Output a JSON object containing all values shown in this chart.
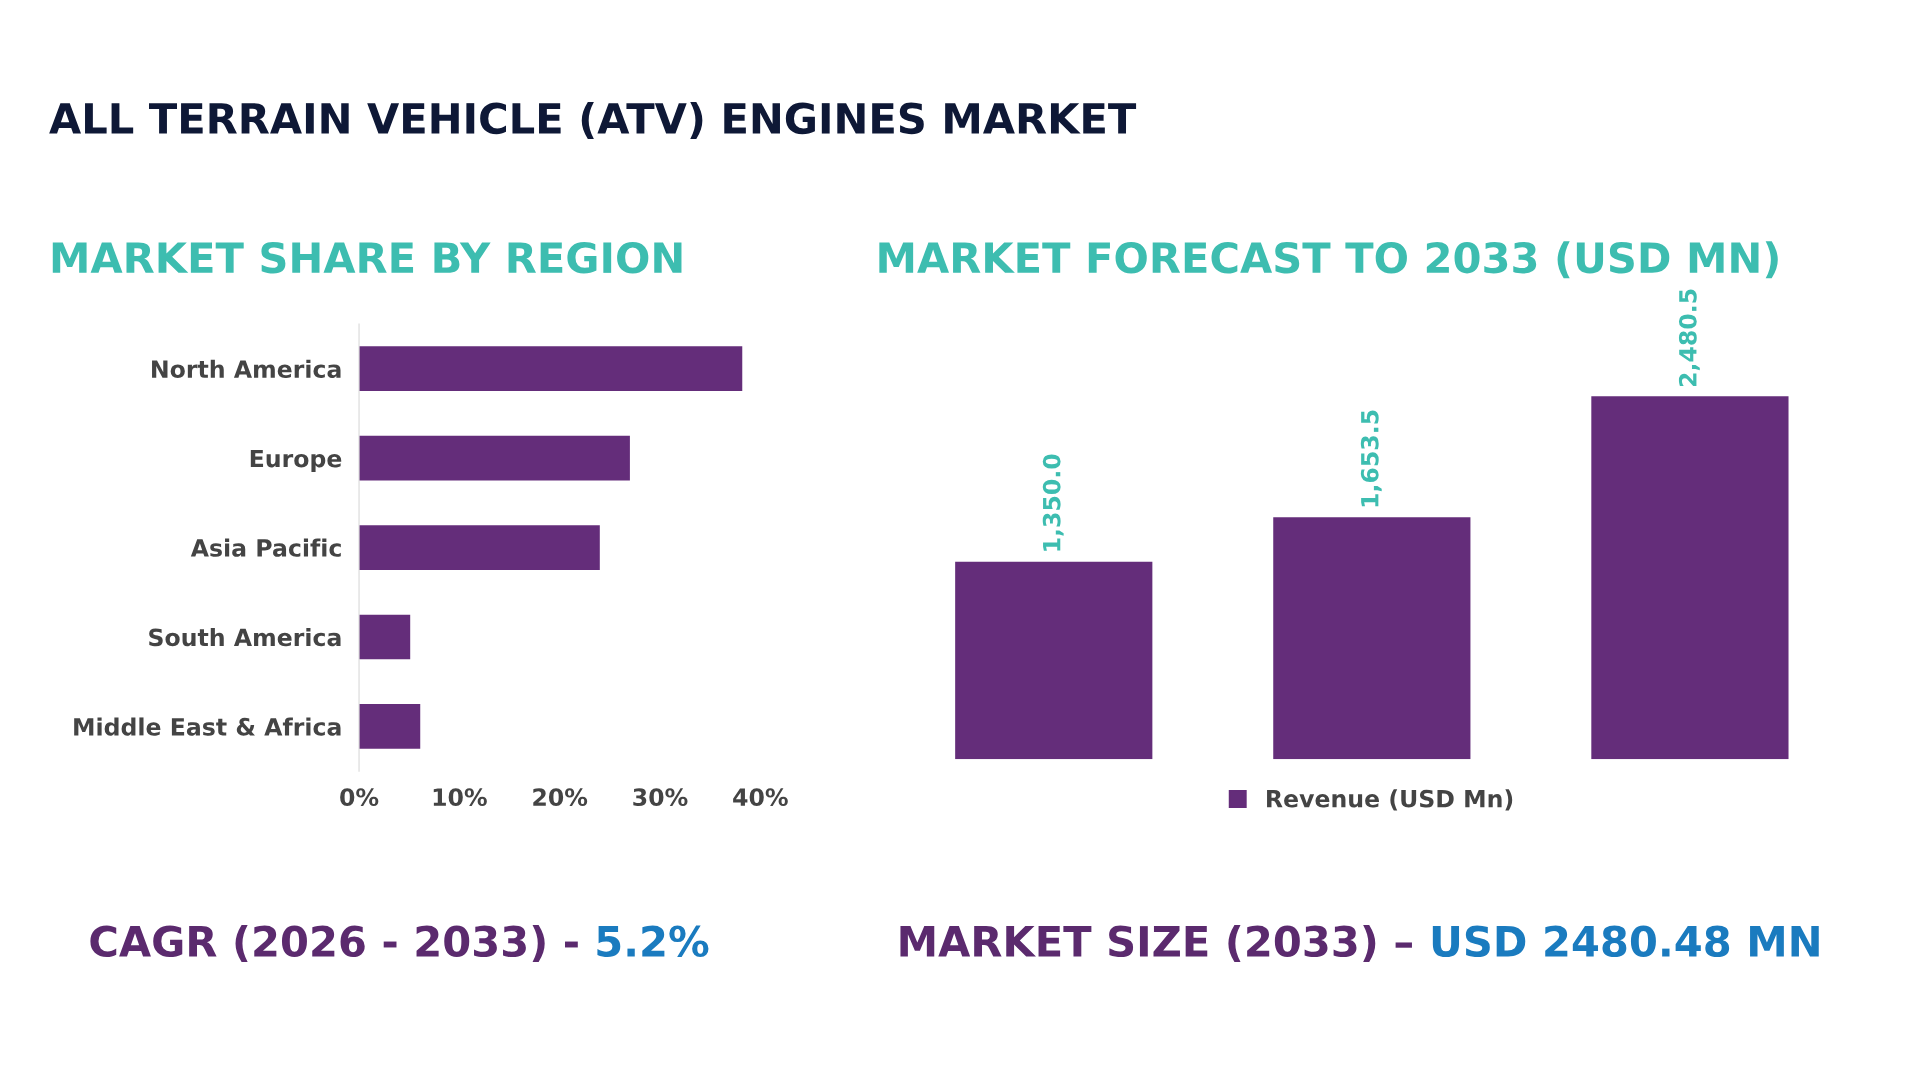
{
  "chart_data": [
    {
      "type": "other",
      "title": "ALL TERRAIN VEHICLE (ATV) ENGINES MARKET",
      "annotations": [
        "CAGR (2026 - 2033) - ",
        "5.2%",
        "MARKET SIZE (2033) – ",
        "USD 2480.48 MN"
      ]
    },
    {
      "type": "bar",
      "title": "MARKET SHARE BY REGION",
      "orientation": "horizontal",
      "categories": [
        "North America",
        "Europe",
        "Asia Pacific",
        "South America",
        "Middle East & Africa"
      ],
      "values": [
        38.2,
        27,
        24,
        5.1,
        6.1
      ],
      "color": "#642d7a",
      "xlim": [
        0,
        40
      ],
      "xticks": [
        {
          "value": 0,
          "label": "0%"
        },
        {
          "value": 10,
          "label": "10%"
        },
        {
          "value": 20,
          "label": "20%"
        },
        {
          "value": 30,
          "label": "30%"
        },
        {
          "value": 40,
          "label": "40%"
        }
      ],
      "grid": false
    },
    {
      "type": "bar",
      "title": "MARKET FORECAST TO 2033 (USD MN)",
      "categories": [
        null,
        null,
        null
      ],
      "series": [
        {
          "name": "Revenue (USD Mn)",
          "color": "#642d7a",
          "values": [
            1350.0,
            1653.5,
            2480.5
          ],
          "value_labels": [
            "1,350.0",
            "1,653.5",
            "2,480.5"
          ]
        }
      ],
      "legend": "bottom"
    }
  ]
}
